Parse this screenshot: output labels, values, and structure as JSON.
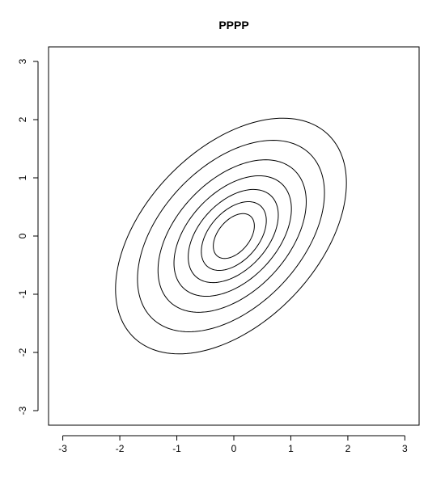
{
  "chart_data": {
    "type": "contour",
    "title": "PPPP",
    "xlabel": "",
    "ylabel": "",
    "xlim": [
      -3.25,
      3.25
    ],
    "ylim": [
      -3.25,
      3.25
    ],
    "x_ticks": [
      -3,
      -2,
      -1,
      0,
      1,
      2,
      3
    ],
    "y_ticks": [
      -3,
      -2,
      -1,
      0,
      1,
      2,
      3
    ],
    "grid": false,
    "legend": "none",
    "line_color": "#000000",
    "contours": [
      {
        "level_index": 1,
        "center": [
          -0.05,
          0.0
        ],
        "x_extent": [
          -2.0,
          2.05
        ],
        "y_extent": [
          -2.0,
          2.05
        ]
      },
      {
        "level_index": 2,
        "center": [
          -0.05,
          0.0
        ],
        "x_extent": [
          -1.6,
          1.68
        ],
        "y_extent": [
          -1.62,
          1.67
        ]
      },
      {
        "level_index": 3,
        "center": [
          -0.03,
          0.0
        ],
        "x_extent": [
          -1.3,
          1.3
        ],
        "y_extent": [
          -1.3,
          1.32
        ]
      },
      {
        "level_index": 4,
        "center": [
          -0.02,
          0.0
        ],
        "x_extent": [
          -1.02,
          1.04
        ],
        "y_extent": [
          -1.03,
          1.04
        ]
      },
      {
        "level_index": 5,
        "center": [
          -0.01,
          0.0
        ],
        "x_extent": [
          -0.78,
          0.8
        ],
        "y_extent": [
          -0.8,
          0.8
        ]
      },
      {
        "level_index": 6,
        "center": [
          0.0,
          0.0
        ],
        "x_extent": [
          -0.56,
          0.58
        ],
        "y_extent": [
          -0.58,
          0.6
        ]
      },
      {
        "level_index": 7,
        "center": [
          0.0,
          0.0
        ],
        "x_extent": [
          -0.34,
          0.38
        ],
        "y_extent": [
          -0.37,
          0.4
        ]
      }
    ]
  }
}
